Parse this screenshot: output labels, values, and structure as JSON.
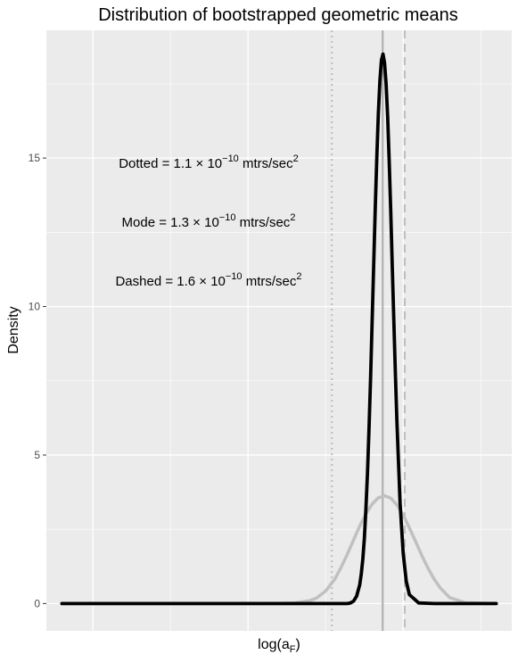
{
  "chart_data": {
    "type": "line",
    "title": "Distribution of bootstrapped geometric means",
    "xlabel": {
      "main": "log(a",
      "sub": "F",
      "close": ")"
    },
    "ylabel": "Density",
    "x_tick_labels": [],
    "y_ticks": [
      0,
      5,
      10,
      15
    ],
    "y_tick_labels": [
      "0",
      "5",
      "10",
      "15"
    ],
    "xlim": [
      -23.65,
      -22.15
    ],
    "ylim": [
      -0.92,
      19.3
    ],
    "grid": true,
    "legend": "none",
    "series": [
      {
        "color": "#c0c0c0",
        "x": [
          -23.6,
          -23.4,
          -23.2,
          -23.0,
          -22.9,
          -22.85,
          -22.8,
          -22.78,
          -22.75,
          -22.72,
          -22.7,
          -22.68,
          -22.66,
          -22.64,
          -22.62,
          -22.6,
          -22.58,
          -22.56,
          -22.54,
          -22.52,
          -22.5,
          -22.48,
          -22.46,
          -22.44,
          -22.42,
          -22.4,
          -22.38,
          -22.35,
          -22.3,
          -22.2
        ],
        "y": [
          0,
          0,
          0,
          0,
          0.005,
          0.02,
          0.1,
          0.18,
          0.42,
          0.83,
          1.22,
          1.66,
          2.14,
          2.61,
          3.02,
          3.35,
          3.56,
          3.63,
          3.55,
          3.32,
          2.98,
          2.55,
          2.09,
          1.62,
          1.19,
          0.82,
          0.52,
          0.2,
          0.03,
          0
        ]
      },
      {
        "color": "#000000",
        "x": [
          -23.6,
          -23.2,
          -22.8,
          -22.7,
          -22.68,
          -22.67,
          -22.66,
          -22.65,
          -22.64,
          -22.635,
          -22.63,
          -22.625,
          -22.62,
          -22.615,
          -22.61,
          -22.605,
          -22.6,
          -22.595,
          -22.59,
          -22.585,
          -22.58,
          -22.575,
          -22.57,
          -22.565,
          -22.56,
          -22.555,
          -22.55,
          -22.545,
          -22.54,
          -22.535,
          -22.53,
          -22.525,
          -22.52,
          -22.51,
          -22.5,
          -22.49,
          -22.48,
          -22.45,
          -22.4,
          -22.2
        ],
        "y": [
          0,
          0,
          0,
          0,
          0,
          0.02,
          0.08,
          0.25,
          0.63,
          1.0,
          1.5,
          2.2,
          3.2,
          4.4,
          5.9,
          7.6,
          9.5,
          11.4,
          13.3,
          15.0,
          16.5,
          17.6,
          18.3,
          18.5,
          18.2,
          17.5,
          16.4,
          14.9,
          13.2,
          11.3,
          9.5,
          7.7,
          6.1,
          3.4,
          1.7,
          0.75,
          0.3,
          0.02,
          0,
          0
        ]
      }
    ],
    "vlines": [
      {
        "name": "dotted",
        "x": -22.73,
        "style": "dotted",
        "color": "#c0c0c0"
      },
      {
        "name": "mode",
        "x": -22.566,
        "style": "solid",
        "color": "#b0b0b0"
      },
      {
        "name": "dashed",
        "x": -22.495,
        "style": "dashed",
        "color": "#c0c0c0"
      }
    ],
    "annotations": [
      {
        "lhs": "Dotted",
        "value": "1.1",
        "base": "10",
        "exp": "−10",
        "unit": "mtrs/sec",
        "unit_exp": "2"
      },
      {
        "lhs": "Mode",
        "value": "1.3",
        "base": "10",
        "exp": "−10",
        "unit": "mtrs/sec",
        "unit_exp": "2"
      },
      {
        "lhs": "Dashed",
        "value": "1.6",
        "base": "10",
        "exp": "−10",
        "unit": "mtrs/sec",
        "unit_exp": "2"
      }
    ]
  }
}
